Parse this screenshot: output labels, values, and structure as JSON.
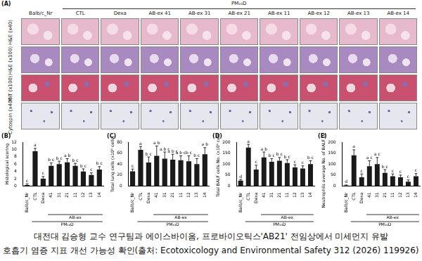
{
  "panel_a": {
    "label": "(A)",
    "columns": [
      "Balb/c_Nr",
      "CTL",
      "Dexa",
      "AB-ex 41",
      "AB-ex 31",
      "AB-ex 21",
      "AB-ex 11",
      "AB-ex 12",
      "AB-ex 13",
      "AB-ex 14"
    ],
    "groups": [
      {
        "label": "PM₁₀D",
        "columns": [
          "CTL",
          "Dexa",
          "AB-ex 41",
          "AB-ex 31",
          "AB-ex 21",
          "AB-ex 11",
          "AB-ex 12",
          "AB-ex 13",
          "AB-ex 14"
        ]
      }
    ],
    "rows": [
      "H&E (x40)",
      "H&E (x100)",
      "M-T (x100)",
      "Cytospin (x400)"
    ]
  },
  "chart_data": [
    {
      "type": "bar",
      "title": "(B)",
      "y_label": "Histological scoring",
      "categories": [
        "Balb/c_Nr",
        "CTL",
        "Dexa",
        "41",
        "31",
        "21",
        "11",
        "12",
        "13",
        "14"
      ],
      "values": [
        0.3,
        9.5,
        2.0,
        5.5,
        6.0,
        6.5,
        5.5,
        4.0,
        3.0,
        4.5
      ],
      "errors": [
        0.3,
        0.8,
        0.6,
        0.8,
        0.8,
        1.0,
        0.7,
        0.7,
        0.6,
        0.8
      ],
      "letters": [
        "c",
        "a",
        "c",
        "b c",
        "b c",
        "a b",
        "b c",
        "b c",
        "c",
        "b c"
      ],
      "x_groups": [
        {
          "label": "AB-ex",
          "categories": [
            "41",
            "31",
            "21",
            "11",
            "12",
            "13",
            "14"
          ]
        },
        {
          "label": "PM₁₀D",
          "categories": [
            "CTL",
            "Dexa",
            "41",
            "31",
            "21",
            "11",
            "12",
            "13",
            "14"
          ]
        }
      ],
      "color": "#1a1a1a",
      "ylim": [
        0,
        12
      ],
      "yticks": [
        0,
        2,
        4,
        6,
        8,
        10,
        12
      ],
      "grid": false
    },
    {
      "type": "bar",
      "title": "(C)",
      "y_label": "Total lung cells (x10⁴ cells)",
      "categories": [
        "Balb/c_Nr",
        "CTL",
        "Dexa",
        "41",
        "31",
        "21",
        "11",
        "12",
        "13",
        "14"
      ],
      "values": [
        27,
        66,
        43,
        55,
        50,
        48,
        47,
        45,
        40,
        58
      ],
      "errors": [
        4,
        6,
        10,
        18,
        12,
        10,
        8,
        10,
        10,
        12
      ],
      "letters": [
        "c",
        "a",
        "b c",
        "a b",
        "a b c",
        "a b c",
        "a b c",
        "b c",
        "b c",
        "a b"
      ],
      "x_groups": [
        {
          "label": "AB-ex",
          "categories": [
            "41",
            "31",
            "21",
            "11",
            "12",
            "13",
            "14"
          ]
        },
        {
          "label": "PM₁₀D",
          "categories": [
            "CTL",
            "Dexa",
            "41",
            "31",
            "21",
            "11",
            "12",
            "13",
            "14"
          ]
        }
      ],
      "color": "#1a1a1a",
      "ylim": [
        0,
        80
      ],
      "yticks": [
        0,
        20,
        40,
        60,
        80
      ],
      "grid": false
    },
    {
      "type": "bar",
      "title": "(D)",
      "y_label": "Total BALF cells No. (x10⁴ cells)",
      "categories": [
        "Balb/c_Nr",
        "CTL",
        "Dexa",
        "41",
        "31",
        "21",
        "11",
        "12",
        "13",
        "14"
      ],
      "values": [
        25,
        175,
        75,
        130,
        110,
        115,
        105,
        85,
        80,
        100
      ],
      "errors": [
        5,
        15,
        20,
        25,
        15,
        15,
        15,
        12,
        12,
        15
      ],
      "letters": [
        "d",
        "a",
        "c",
        "a b",
        "b c",
        "b c",
        "b c",
        "c",
        "c",
        "b c"
      ],
      "x_groups": [
        {
          "label": "AB-ex",
          "categories": [
            "41",
            "31",
            "21",
            "11",
            "12",
            "13",
            "14"
          ]
        },
        {
          "label": "PM₁₀D",
          "categories": [
            "CTL",
            "Dexa",
            "41",
            "31",
            "21",
            "11",
            "12",
            "13",
            "14"
          ]
        }
      ],
      "color": "#1a1a1a",
      "ylim": [
        0,
        200
      ],
      "yticks": [
        0,
        50,
        100,
        150,
        200
      ],
      "grid": false
    },
    {
      "type": "bar",
      "title": "(E)",
      "y_label": "Neutrophils average No. of BALF cytospin",
      "categories": [
        "Balb/c_Nr",
        "CTL",
        "Dexa",
        "41",
        "31",
        "21",
        "11",
        "12",
        "13",
        "14"
      ],
      "values": [
        3,
        140,
        40,
        90,
        100,
        60,
        45,
        40,
        20,
        45
      ],
      "errors": [
        2,
        25,
        15,
        25,
        30,
        15,
        10,
        10,
        8,
        12
      ],
      "letters": [
        "d",
        "a",
        "c",
        "a c",
        "a c",
        "b c",
        "c",
        "c",
        "c",
        "c"
      ],
      "x_groups": [
        {
          "label": "AB-ex",
          "categories": [
            "41",
            "31",
            "21",
            "11",
            "12",
            "13",
            "14"
          ]
        },
        {
          "label": "PM₁₀D",
          "categories": [
            "CTL",
            "Dexa",
            "41",
            "31",
            "21",
            "11",
            "12",
            "13",
            "14"
          ]
        }
      ],
      "color": "#1a1a1a",
      "ylim": [
        0,
        200
      ],
      "yticks": [
        0,
        50,
        100,
        150,
        200
      ],
      "grid": false
    }
  ],
  "caption": [
    "대전대 김승형 교수 연구팀과 에이스바이옴, 프로바이오틱스'AB21' 전임상에서 미세먼지 유발",
    "호흡기 염증 지표 개선 가능성 확인(출처: Ecotoxicology and Environmental Safety 312 (2026) 119926)"
  ]
}
